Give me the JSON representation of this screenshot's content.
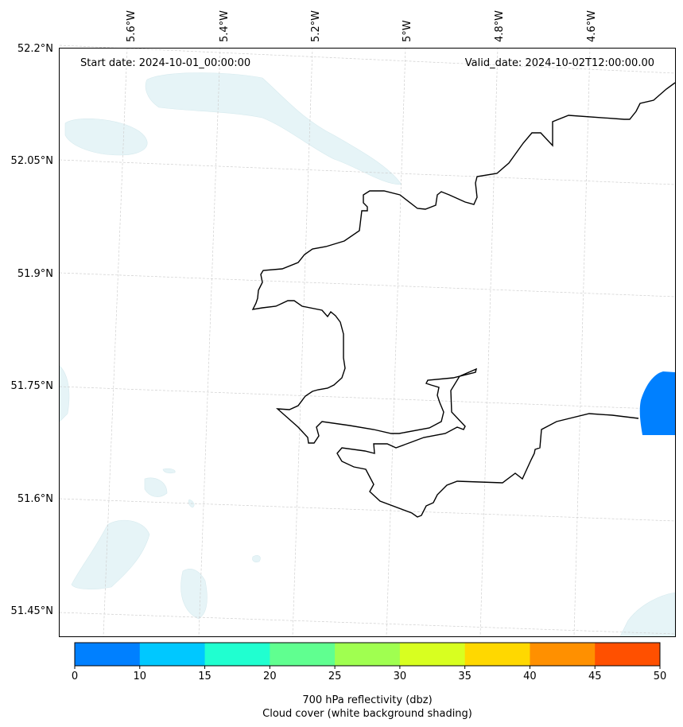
{
  "map": {
    "start_date_label": "Start date: 2024-10-01_00:00:00",
    "valid_date_label": "Valid_date: 2024-10-02T12:00:00.00",
    "lon_labels": [
      "5.6°W",
      "5.4°W",
      "5.2°W",
      "5°W",
      "4.8°W",
      "4.6°W"
    ],
    "lat_labels": [
      "52.2°N",
      "52.05°N",
      "51.9°N",
      "51.75°N",
      "51.6°N",
      "51.45°N"
    ],
    "coastline_color": "#000000",
    "reflectivity_patch_color": "#0080ff",
    "cloud_shading_color": "#e6f4f7"
  },
  "colorbar": {
    "ticks": [
      "0",
      "10",
      "15",
      "20",
      "25",
      "30",
      "35",
      "40",
      "45",
      "50"
    ],
    "colors": [
      "#0080ff",
      "#00c8ff",
      "#20ffd0",
      "#60ff90",
      "#a0ff50",
      "#d8ff20",
      "#ffd800",
      "#ff9000",
      "#ff5000"
    ],
    "label_line1": "700 hPa reflectivity (dbz)",
    "label_line2": "Cloud cover (white background shading)"
  }
}
